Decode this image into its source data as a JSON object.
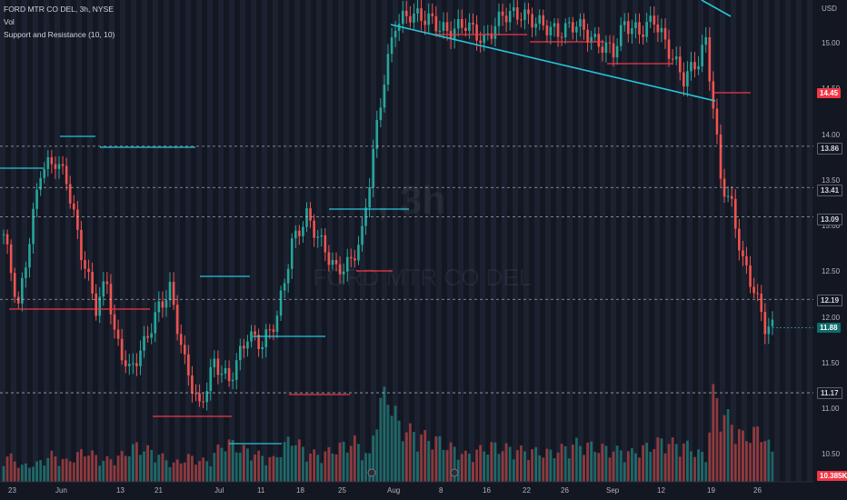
{
  "legend": {
    "symbol_line": "FORD MTR CO DEL, 3h, NYSE",
    "vol_label": "Vol",
    "indicator_label": "Support and Resistance (10, 10)"
  },
  "watermark": {
    "interval": ", 3h",
    "name": "FORD MTR CO DEL"
  },
  "axis": {
    "currency": "USD",
    "y_ticks": [
      "15.00",
      "14.50",
      "14.00",
      "13.50",
      "13.00",
      "12.50",
      "12.00",
      "11.50",
      "11.00",
      "10.50"
    ],
    "x_ticks": [
      "23",
      "Jun",
      "13",
      "21",
      "Jul",
      "11",
      "18",
      "25",
      "Aug",
      "8",
      "16",
      "22",
      "26",
      "Sep",
      "12",
      "19",
      "26"
    ]
  },
  "price_tags": {
    "level_1": "14.45",
    "level_2": "13.86",
    "level_3": "13.41",
    "level_4": "13.09",
    "level_5": "12.19",
    "last_price": "11.88",
    "level_6": "11.17",
    "volume_tag": "10.385K"
  },
  "colors": {
    "background": "#131722",
    "up": "#26a69a",
    "down": "#ef5350",
    "support_line": "#f23645",
    "resistance_line": "#26c6da",
    "grid_stripe": "#1c2130"
  },
  "chart_data": {
    "type": "candlestick",
    "ylim": [
      10.3,
      15.4
    ],
    "horizontal_levels": [
      13.86,
      13.41,
      13.09,
      12.19,
      11.17
    ],
    "highlight_levels": [
      14.45,
      11.88
    ],
    "close_waypoints": [
      [
        0,
        12.9
      ],
      [
        4,
        12.1
      ],
      [
        10,
        13.6
      ],
      [
        14,
        13.7
      ],
      [
        17,
        13.5
      ],
      [
        21,
        12.7
      ],
      [
        25,
        12.1
      ],
      [
        28,
        12.4
      ],
      [
        30,
        11.8
      ],
      [
        34,
        11.4
      ],
      [
        38,
        11.7
      ],
      [
        42,
        12.1
      ],
      [
        45,
        12.3
      ],
      [
        49,
        11.5
      ],
      [
        53,
        11.0
      ],
      [
        57,
        11.5
      ],
      [
        61,
        11.3
      ],
      [
        66,
        11.8
      ],
      [
        70,
        11.7
      ],
      [
        74,
        12.0
      ],
      [
        78,
        12.8
      ],
      [
        82,
        13.1
      ],
      [
        86,
        12.8
      ],
      [
        90,
        12.5
      ],
      [
        94,
        12.6
      ],
      [
        97,
        12.9
      ],
      [
        100,
        13.8
      ],
      [
        103,
        14.6
      ],
      [
        106,
        15.2
      ],
      [
        110,
        15.3
      ],
      [
        115,
        15.25
      ],
      [
        120,
        15.1
      ],
      [
        125,
        15.2
      ],
      [
        130,
        15.0
      ],
      [
        135,
        15.3
      ],
      [
        140,
        15.3
      ],
      [
        145,
        15.2
      ],
      [
        150,
        15.1
      ],
      [
        155,
        15.2
      ],
      [
        160,
        15.0
      ],
      [
        165,
        14.9
      ],
      [
        168,
        15.2
      ],
      [
        172,
        15.1
      ],
      [
        176,
        15.25
      ],
      [
        180,
        14.9
      ],
      [
        184,
        14.6
      ],
      [
        188,
        14.8
      ],
      [
        190,
        15.0
      ],
      [
        192,
        14.3
      ],
      [
        194,
        13.5
      ],
      [
        197,
        13.2
      ],
      [
        200,
        12.6
      ],
      [
        203,
        12.3
      ],
      [
        206,
        11.9
      ],
      [
        208,
        11.88
      ]
    ],
    "volumes": [
      [
        2,
        110
      ],
      [
        5,
        70
      ],
      [
        9,
        80
      ],
      [
        13,
        120
      ],
      [
        17,
        90
      ],
      [
        22,
        140
      ],
      [
        27,
        95
      ],
      [
        31,
        110
      ],
      [
        36,
        160
      ],
      [
        41,
        130
      ],
      [
        46,
        80
      ],
      [
        50,
        110
      ],
      [
        55,
        90
      ],
      [
        60,
        180
      ],
      [
        64,
        150
      ],
      [
        69,
        120
      ],
      [
        73,
        100
      ],
      [
        78,
        200
      ],
      [
        82,
        130
      ],
      [
        86,
        120
      ],
      [
        90,
        150
      ],
      [
        95,
        180
      ],
      [
        99,
        110
      ],
      [
        101,
        320
      ],
      [
        104,
        400
      ],
      [
        107,
        250
      ],
      [
        112,
        210
      ],
      [
        118,
        180
      ],
      [
        125,
        120
      ],
      [
        132,
        160
      ],
      [
        140,
        140
      ],
      [
        148,
        130
      ],
      [
        155,
        170
      ],
      [
        162,
        150
      ],
      [
        170,
        130
      ],
      [
        178,
        180
      ],
      [
        185,
        160
      ],
      [
        190,
        110
      ],
      [
        192,
        380
      ],
      [
        195,
        300
      ],
      [
        200,
        200
      ],
      [
        205,
        230
      ],
      [
        208,
        130
      ]
    ]
  }
}
